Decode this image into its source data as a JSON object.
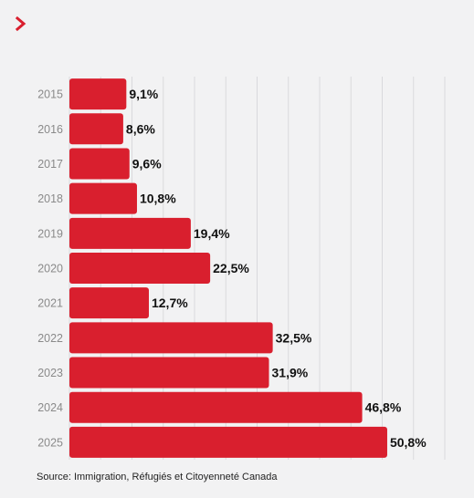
{
  "header": {
    "icon": "chevron-right-icon"
  },
  "colors": {
    "bar": "#d91f2e",
    "accent": "#d91f2e",
    "grid": "#d9d9dc",
    "background": "#f2f2f3"
  },
  "chart_data": {
    "type": "bar",
    "orientation": "horizontal",
    "categories": [
      "2015",
      "2016",
      "2017",
      "2018",
      "2019",
      "2020",
      "2021",
      "2022",
      "2023",
      "2024",
      "2025"
    ],
    "values": [
      9.1,
      8.6,
      9.6,
      10.8,
      19.4,
      22.5,
      12.7,
      32.5,
      31.9,
      46.8,
      50.8
    ],
    "value_labels": [
      "9,1%",
      "8,6%",
      "9,6%",
      "10,8%",
      "19,4%",
      "22,5%",
      "12,7%",
      "32,5%",
      "31,9%",
      "46,8%",
      "50,8%"
    ],
    "xlim": [
      0,
      60
    ],
    "grid": true,
    "title": "",
    "xlabel": "",
    "ylabel": ""
  },
  "source": "Source: Immigration, Réfugiés et Citoyenneté Canada"
}
